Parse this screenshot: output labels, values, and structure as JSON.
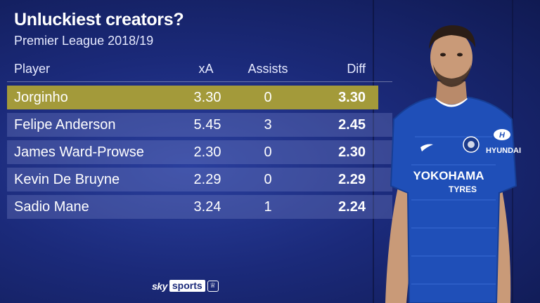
{
  "header": {
    "title": "Unluckiest creators?",
    "subtitle": "Premier League 2018/19"
  },
  "table": {
    "columns": {
      "player": "Player",
      "xa": "xA",
      "assists": "Assists",
      "diff": "Diff"
    },
    "rows": [
      {
        "player": "Jorginho",
        "xa": "3.30",
        "assists": "0",
        "diff": "3.30"
      },
      {
        "player": "Felipe Anderson",
        "xa": "5.45",
        "assists": "3",
        "diff": "2.45"
      },
      {
        "player": "James Ward-Prowse",
        "xa": "2.30",
        "assists": "0",
        "diff": "2.30"
      },
      {
        "player": "Kevin De Bruyne",
        "xa": "2.29",
        "assists": "0",
        "diff": "2.29"
      },
      {
        "player": "Sadio Mane",
        "xa": "3.24",
        "assists": "1",
        "diff": "2.24"
      }
    ]
  },
  "branding": {
    "sky": "sky",
    "sports": "sports",
    "badge": "♕"
  },
  "photo": {
    "shirt_sponsor": "YOKOHAMA",
    "shirt_sponsor_sub": "TYRES",
    "sleeve_sponsor": "HYUNDAI"
  },
  "colors": {
    "highlight": "#a39a3a",
    "row": "#4a5aa8",
    "background": "#1b2a7a",
    "kit": "#1f4fb8"
  }
}
